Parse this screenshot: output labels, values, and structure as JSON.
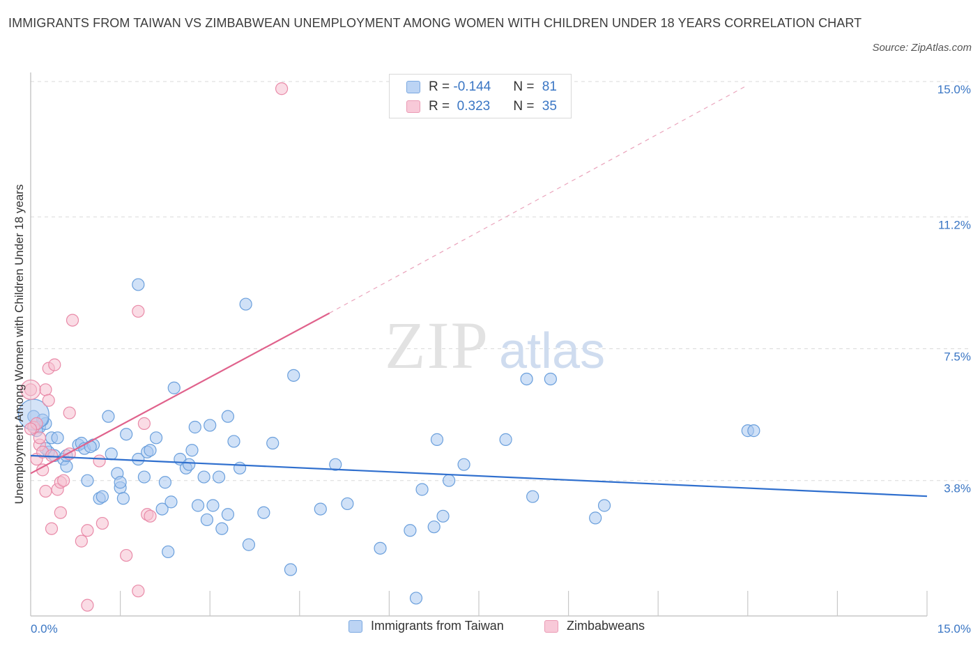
{
  "title": "IMMIGRANTS FROM TAIWAN VS ZIMBABWEAN UNEMPLOYMENT AMONG WOMEN WITH CHILDREN UNDER 18 YEARS CORRELATION CHART",
  "source": "Source: ZipAtlas.com",
  "watermark": {
    "zip": "ZIP",
    "atlas": "atlas"
  },
  "legend": {
    "rows": [
      {
        "r_label": "R =",
        "r_value": "-0.144",
        "n_label": "N =",
        "n_value": "81"
      },
      {
        "r_label": "R =",
        "r_value": " 0.323",
        "n_label": "N =",
        "n_value": "35"
      }
    ]
  },
  "bottom_legend": [
    "Immigrants from Taiwan",
    "Zimbabweans"
  ],
  "colors": {
    "taiwan_fill": "#a9c8f0",
    "taiwan_stroke": "#6a9fdc",
    "taiwan_line": "#2f6fce",
    "zimb_fill": "#f6bfd0",
    "zimb_stroke": "#e98aa8",
    "zimb_line": "#e0628c",
    "grid": "#d9d9d9",
    "axis_text": "#3a76c4"
  },
  "chart_data": {
    "type": "scatter",
    "title": "IMMIGRANTS FROM TAIWAN VS ZIMBABWEAN UNEMPLOYMENT AMONG WOMEN WITH CHILDREN UNDER 18 YEARS CORRELATION CHART",
    "xlabel": "",
    "ylabel": "Unemployment Among Women with Children Under 18 years",
    "xlim": [
      0,
      15
    ],
    "ylim": [
      0,
      15
    ],
    "x_tick_labels": [
      "0.0%",
      "15.0%"
    ],
    "y_ticks": [
      3.8,
      7.5,
      11.2,
      15.0
    ],
    "y_tick_labels": [
      "3.8%",
      "7.5%",
      "11.2%",
      "15.0%"
    ],
    "grid": "horizontal dashed",
    "legend_position": "top-center",
    "series": [
      {
        "name": "Immigrants from Taiwan",
        "r": -0.144,
        "n": 81,
        "trend": {
          "x": [
            0.0,
            15.0
          ],
          "y": [
            4.5,
            3.36
          ]
        },
        "points": [
          [
            0.05,
            5.6
          ],
          [
            0.15,
            5.3
          ],
          [
            0.25,
            5.4
          ],
          [
            0.2,
            5.5
          ],
          [
            0.3,
            4.6
          ],
          [
            0.35,
            5.0
          ],
          [
            0.45,
            5.0
          ],
          [
            0.4,
            4.5
          ],
          [
            0.55,
            4.4
          ],
          [
            0.6,
            4.2
          ],
          [
            0.8,
            4.8
          ],
          [
            0.85,
            4.85
          ],
          [
            0.9,
            4.7
          ],
          [
            1.05,
            4.8
          ],
          [
            0.95,
            3.8
          ],
          [
            1.15,
            3.3
          ],
          [
            1.2,
            3.35
          ],
          [
            1.3,
            5.6
          ],
          [
            1.35,
            4.55
          ],
          [
            1.45,
            4.0
          ],
          [
            1.5,
            3.6
          ],
          [
            1.55,
            3.3
          ],
          [
            1.5,
            3.75
          ],
          [
            1.6,
            5.1
          ],
          [
            1.8,
            9.3
          ],
          [
            1.8,
            4.4
          ],
          [
            1.9,
            3.9
          ],
          [
            1.95,
            4.6
          ],
          [
            2.0,
            4.65
          ],
          [
            2.1,
            5.0
          ],
          [
            2.2,
            3.0
          ],
          [
            2.25,
            3.75
          ],
          [
            2.3,
            1.8
          ],
          [
            2.35,
            3.2
          ],
          [
            2.4,
            6.4
          ],
          [
            2.5,
            4.4
          ],
          [
            2.6,
            4.15
          ],
          [
            2.65,
            4.25
          ],
          [
            2.7,
            4.65
          ],
          [
            2.75,
            5.3
          ],
          [
            2.8,
            3.1
          ],
          [
            2.9,
            3.9
          ],
          [
            2.95,
            2.7
          ],
          [
            3.0,
            5.35
          ],
          [
            3.05,
            3.1
          ],
          [
            3.15,
            3.9
          ],
          [
            3.2,
            2.45
          ],
          [
            3.3,
            2.85
          ],
          [
            3.3,
            5.6
          ],
          [
            3.4,
            4.9
          ],
          [
            3.5,
            4.15
          ],
          [
            3.6,
            8.75
          ],
          [
            3.65,
            2.0
          ],
          [
            3.9,
            2.9
          ],
          [
            4.05,
            4.85
          ],
          [
            4.35,
            1.3
          ],
          [
            4.4,
            6.75
          ],
          [
            4.85,
            3.0
          ],
          [
            5.1,
            4.25
          ],
          [
            5.3,
            3.15
          ],
          [
            5.85,
            1.9
          ],
          [
            6.35,
            2.4
          ],
          [
            6.45,
            0.5
          ],
          [
            6.55,
            3.55
          ],
          [
            6.75,
            2.5
          ],
          [
            6.8,
            4.95
          ],
          [
            6.9,
            2.8
          ],
          [
            7.0,
            3.8
          ],
          [
            7.25,
            4.25
          ],
          [
            7.95,
            4.95
          ],
          [
            8.3,
            6.65
          ],
          [
            8.4,
            3.35
          ],
          [
            8.7,
            6.65
          ],
          [
            9.45,
            2.75
          ],
          [
            9.6,
            3.1
          ],
          [
            12.0,
            5.2
          ],
          [
            12.1,
            5.2
          ],
          [
            0.1,
            5.2
          ],
          [
            0.25,
            4.7
          ],
          [
            0.6,
            4.5
          ],
          [
            1.0,
            4.75
          ]
        ]
      },
      {
        "name": "Zimbabweans",
        "r": 0.323,
        "n": 35,
        "trend": {
          "x": [
            0.0,
            5.0
          ],
          "y": [
            4.0,
            8.5
          ]
        },
        "trend_dashed": {
          "x": [
            5.0,
            12.0
          ],
          "y": [
            8.5,
            14.9
          ]
        },
        "points": [
          [
            0.0,
            6.35
          ],
          [
            0.05,
            5.3
          ],
          [
            0.1,
            5.4
          ],
          [
            0.15,
            4.8
          ],
          [
            0.1,
            4.4
          ],
          [
            0.2,
            4.6
          ],
          [
            0.15,
            5.0
          ],
          [
            0.2,
            4.1
          ],
          [
            0.25,
            6.35
          ],
          [
            0.25,
            3.5
          ],
          [
            0.3,
            6.95
          ],
          [
            0.3,
            6.05
          ],
          [
            0.35,
            4.5
          ],
          [
            0.35,
            2.45
          ],
          [
            0.4,
            7.05
          ],
          [
            0.45,
            3.55
          ],
          [
            0.5,
            3.75
          ],
          [
            0.5,
            2.9
          ],
          [
            0.55,
            3.8
          ],
          [
            0.65,
            5.7
          ],
          [
            0.65,
            4.55
          ],
          [
            0.7,
            8.3
          ],
          [
            0.85,
            2.1
          ],
          [
            0.95,
            0.3
          ],
          [
            0.95,
            2.4
          ],
          [
            1.15,
            4.35
          ],
          [
            1.2,
            2.6
          ],
          [
            1.6,
            1.7
          ],
          [
            1.8,
            8.55
          ],
          [
            1.8,
            0.7
          ],
          [
            1.9,
            5.4
          ],
          [
            1.95,
            2.85
          ],
          [
            2.0,
            2.8
          ],
          [
            4.2,
            14.8
          ],
          [
            0.0,
            5.25
          ]
        ]
      }
    ]
  }
}
